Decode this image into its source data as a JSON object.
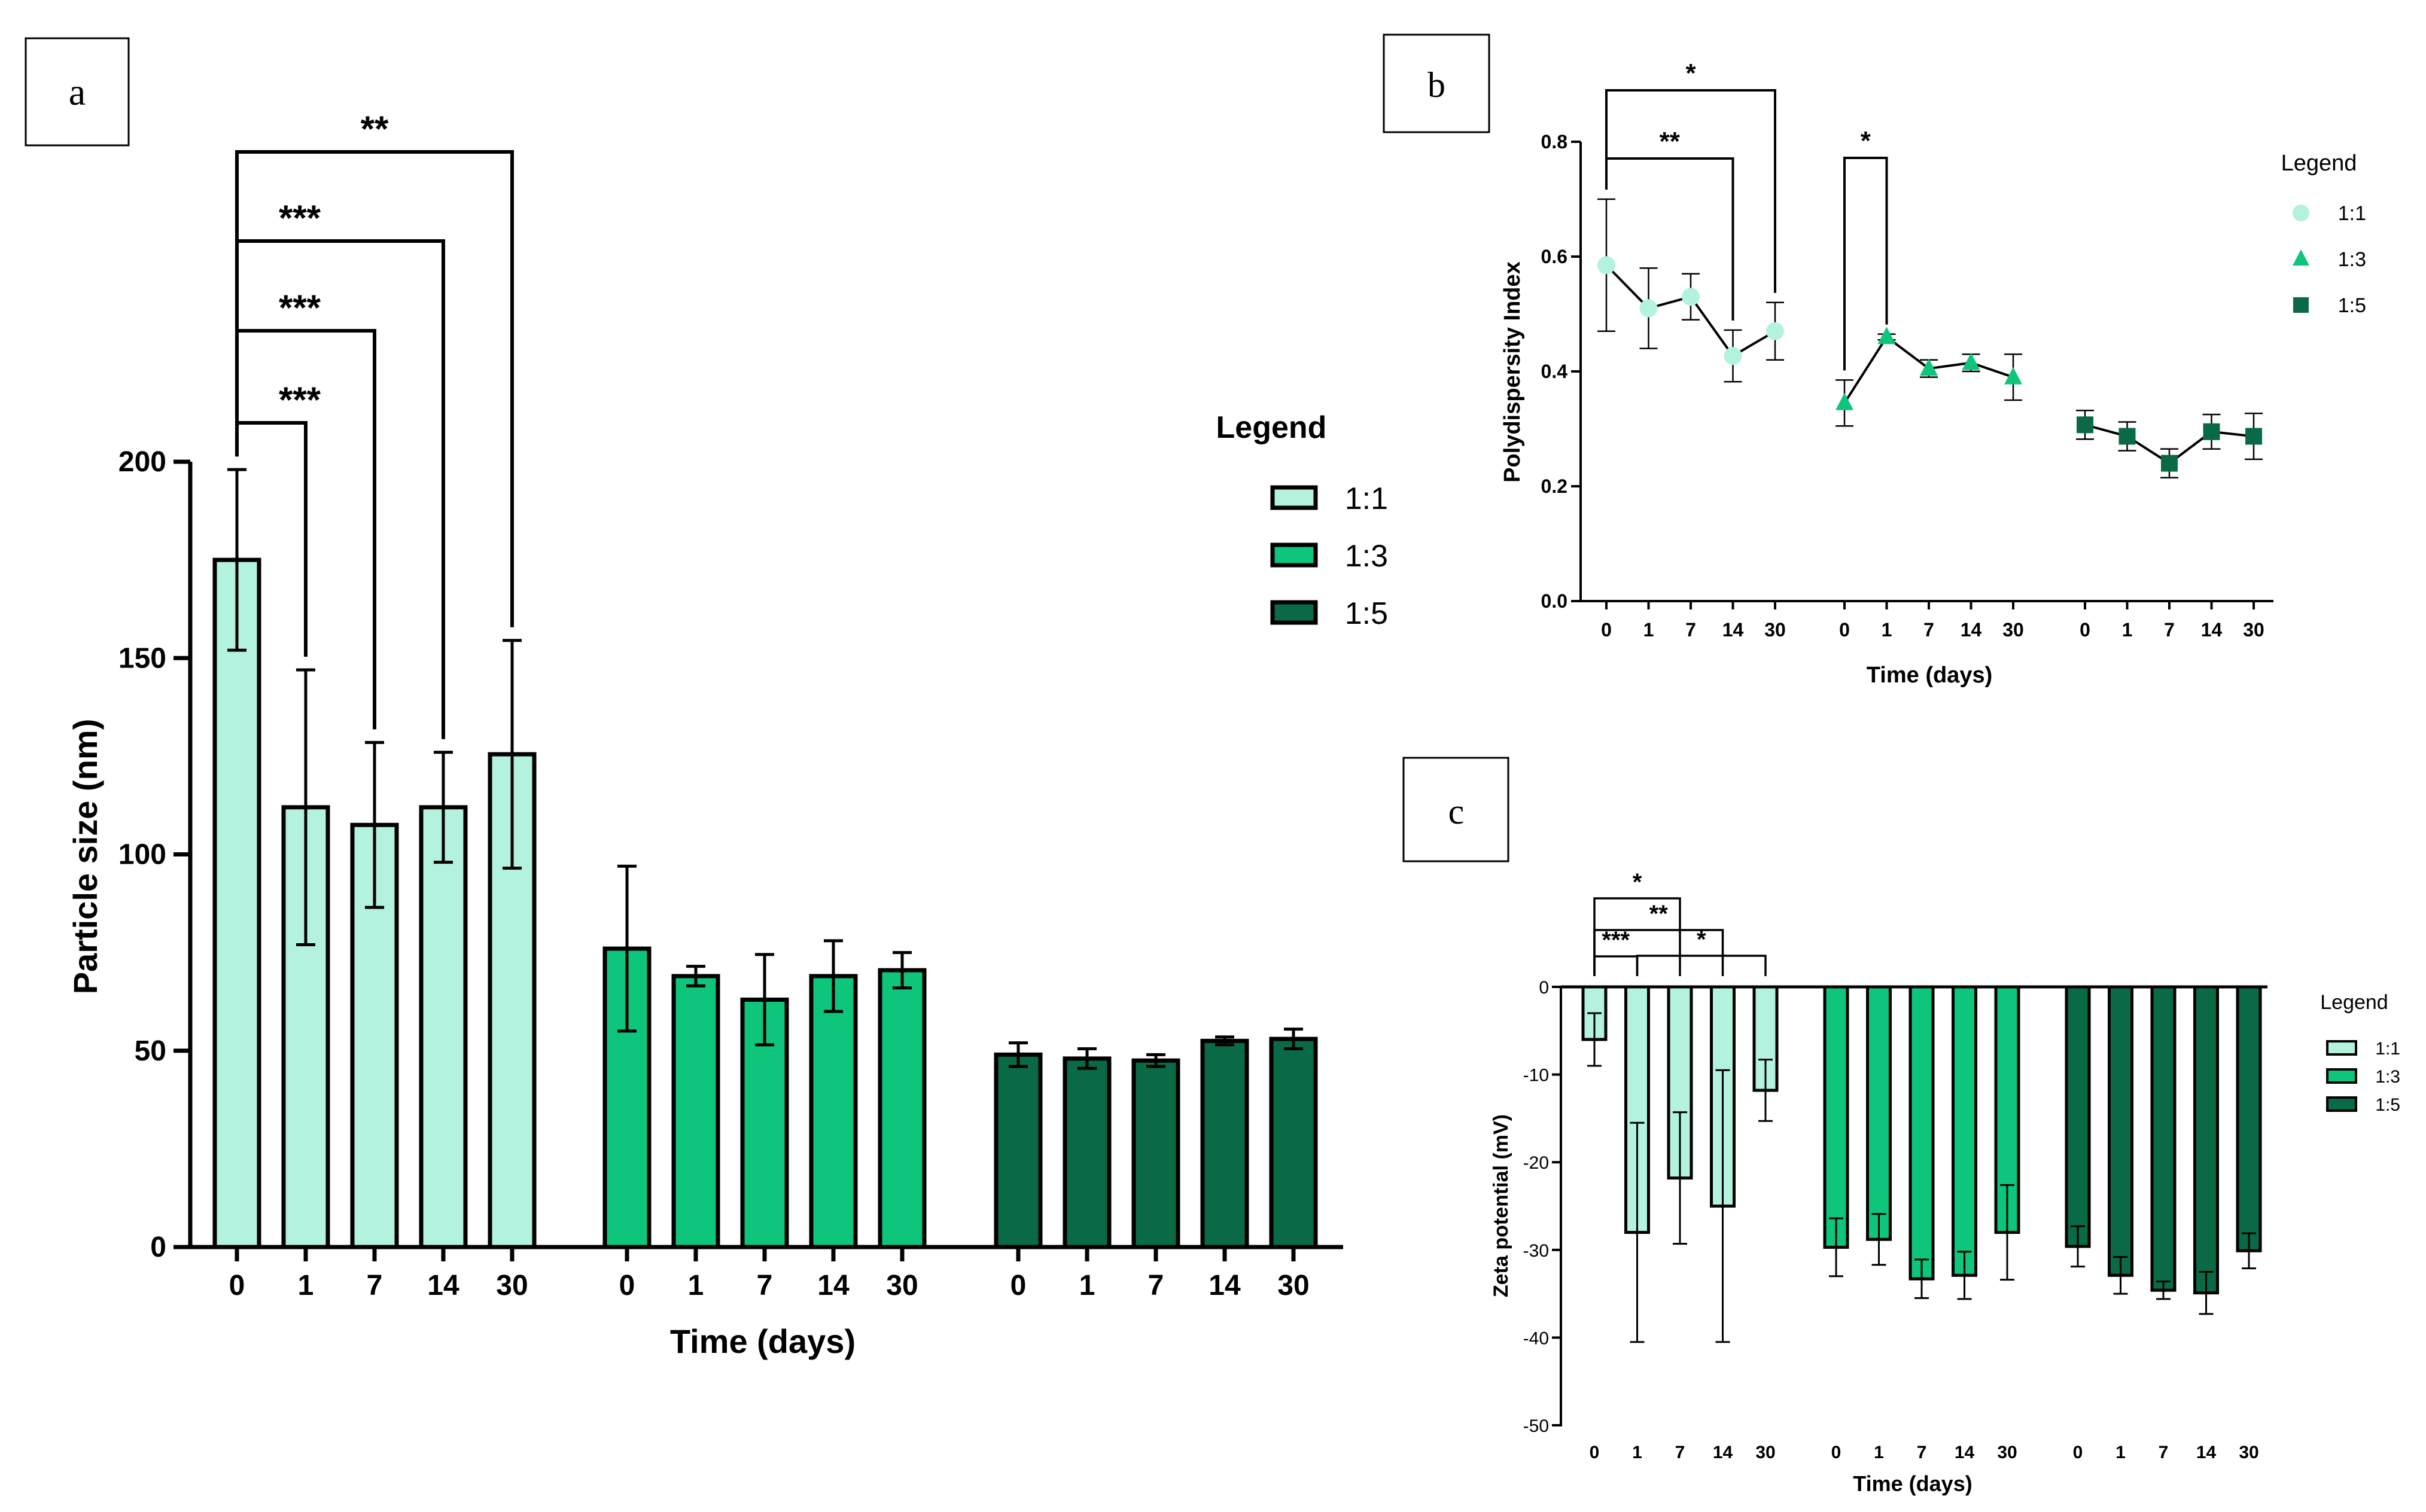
{
  "colors": {
    "s11": "#b3f2de",
    "s13": "#0ec57c",
    "s15": "#0a6a45",
    "axis": "#000000",
    "background": "#ffffff"
  },
  "chart_data": [
    {
      "id": "a",
      "panel_label": "a",
      "type": "bar",
      "title": "",
      "xlabel": "Time (days)",
      "ylabel": "Particle size (nm)",
      "ylim": [
        0,
        200
      ],
      "yticks": [
        0,
        50,
        100,
        150,
        200
      ],
      "categories": [
        "0",
        "1",
        "7",
        "14",
        "30"
      ],
      "legend": {
        "title": "Legend",
        "position": "right",
        "entries": [
          "1:1",
          "1:3",
          "1:5"
        ]
      },
      "series": [
        {
          "name": "1:1",
          "values": [
            175,
            112,
            107.5,
            112,
            125.5
          ],
          "errors": [
            23,
            35,
            21,
            14,
            29
          ]
        },
        {
          "name": "1:3",
          "values": [
            76,
            69,
            63,
            69,
            70.5
          ],
          "errors": [
            21,
            2.5,
            11.5,
            9,
            4.5
          ]
        },
        {
          "name": "1:5",
          "values": [
            49,
            48,
            47.5,
            52.5,
            53
          ],
          "errors": [
            3,
            2.5,
            1.5,
            1,
            2.5
          ]
        }
      ],
      "significance": [
        {
          "series": "1:1",
          "from": "0",
          "to": "1",
          "label": "***"
        },
        {
          "series": "1:1",
          "from": "0",
          "to": "7",
          "label": "***"
        },
        {
          "series": "1:1",
          "from": "0",
          "to": "14",
          "label": "***"
        },
        {
          "series": "1:1",
          "from": "0",
          "to": "30",
          "label": "**"
        }
      ]
    },
    {
      "id": "b",
      "panel_label": "b",
      "type": "scatter",
      "title": "",
      "xlabel": "Time (days)",
      "ylabel": "Polydispersity Index",
      "ylim": [
        0,
        0.8
      ],
      "yticks": [
        "0.0",
        "0.2",
        "0.4",
        "0.6",
        "0.8"
      ],
      "categories": [
        "0",
        "1",
        "7",
        "14",
        "30"
      ],
      "legend": {
        "title": "Legend",
        "position": "right",
        "entries": [
          "1:1",
          "1:3",
          "1:5"
        ]
      },
      "series": [
        {
          "name": "1:1",
          "marker": "circle",
          "values": [
            0.585,
            0.51,
            0.53,
            0.427,
            0.47
          ],
          "errors": [
            0.115,
            0.07,
            0.04,
            0.045,
            0.05
          ]
        },
        {
          "name": "1:3",
          "marker": "triangle",
          "values": [
            0.345,
            0.46,
            0.405,
            0.415,
            0.39
          ],
          "errors": [
            0.04,
            0.005,
            0.015,
            0.015,
            0.04
          ]
        },
        {
          "name": "1:5",
          "marker": "square",
          "values": [
            0.307,
            0.287,
            0.24,
            0.295,
            0.287
          ],
          "errors": [
            0.025,
            0.025,
            0.025,
            0.03,
            0.04
          ]
        }
      ],
      "significance": [
        {
          "series": "1:1",
          "from": "0",
          "to": "30",
          "label": "*"
        },
        {
          "series": "1:1",
          "from": "0",
          "to": "14",
          "label": "**"
        },
        {
          "series": "1:3",
          "from": "0",
          "to": "1",
          "label": "*"
        }
      ]
    },
    {
      "id": "c",
      "panel_label": "c",
      "type": "bar",
      "title": "",
      "xlabel": "Time (days)",
      "ylabel": "Zeta potential (mV)",
      "ylim": [
        -50,
        0
      ],
      "yticks": [
        "0",
        "-10",
        "-20",
        "-30",
        "-40",
        "-50"
      ],
      "categories": [
        "0",
        "1",
        "7",
        "14",
        "30"
      ],
      "legend": {
        "title": "Legend",
        "position": "right",
        "entries": [
          "1:1",
          "1:3",
          "1:5"
        ]
      },
      "series": [
        {
          "name": "1:1",
          "values": [
            -6,
            -28,
            -21.8,
            -25,
            -11.8
          ],
          "errors": [
            3,
            12.5,
            7.5,
            15.5,
            3.5
          ]
        },
        {
          "name": "1:3",
          "values": [
            -29.7,
            -28.8,
            -33.3,
            -32.9,
            -28
          ],
          "errors": [
            3.3,
            2.9,
            2.2,
            2.7,
            5.4
          ]
        },
        {
          "name": "1:5",
          "values": [
            -29.6,
            -32.9,
            -34.6,
            -34.9,
            -30.1
          ],
          "errors": [
            2.3,
            2.1,
            1,
            2.4,
            2
          ]
        }
      ],
      "significance": [
        {
          "series": "1:1",
          "from": "0",
          "to": "14",
          "label": "**"
        },
        {
          "series": "1:1",
          "from": "0",
          "to": "7",
          "label": "*"
        },
        {
          "series": "1:1",
          "from": "0",
          "to": "1",
          "label": "***"
        },
        {
          "series": "1:1",
          "from": "1",
          "to": "30",
          "label": "*"
        }
      ]
    }
  ]
}
